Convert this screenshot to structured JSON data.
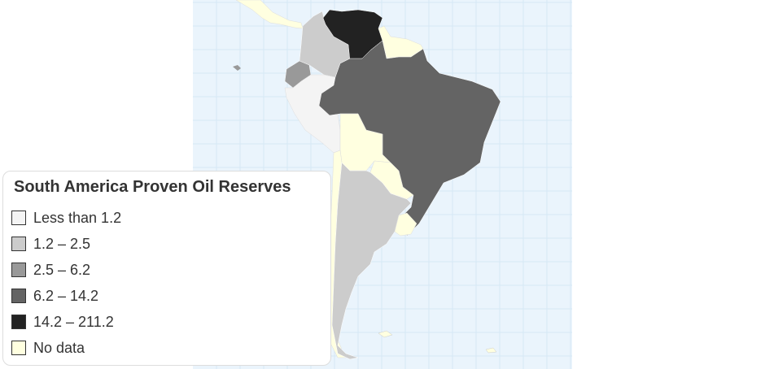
{
  "legend": {
    "title": "South America Proven Oil Reserves",
    "items": [
      {
        "label": "Less than 1.2",
        "color": "#f4f4f4"
      },
      {
        "label": "1.2 – 2.5",
        "color": "#cccccc"
      },
      {
        "label": "2.5 – 6.2",
        "color": "#999999"
      },
      {
        "label": "6.2 – 14.2",
        "color": "#646464"
      },
      {
        "label": "14.2 – 211.2",
        "color": "#222222"
      },
      {
        "label": "No data",
        "color": "#ffffe0"
      }
    ]
  },
  "colors": {
    "ocean": "#eaf4fc",
    "grid": "#d6e8f5"
  }
}
